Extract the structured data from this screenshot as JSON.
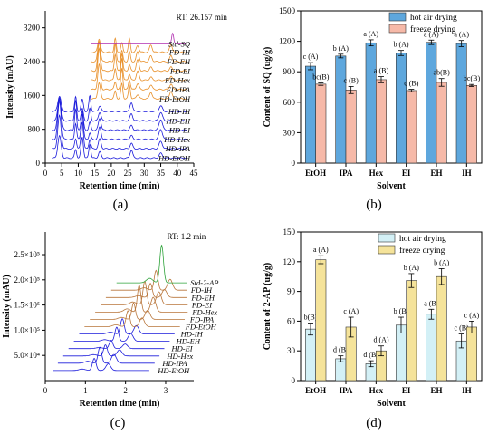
{
  "figure": {
    "subfigure_labels": [
      "(a)",
      "(b)",
      "(c)",
      "(d)"
    ]
  },
  "chart_data": [
    {
      "panel": "(a)",
      "type": "line",
      "xlabel": "Retention time (min)",
      "ylabel": "Intensity (mAU)",
      "xlim": [
        0,
        45
      ],
      "ylim": [
        0,
        3600
      ],
      "xticks": [
        "0",
        "5",
        "10",
        "15",
        "20",
        "25",
        "30",
        "35",
        "40",
        "45"
      ],
      "yticks": [
        "0",
        "800",
        "1600",
        "2400",
        "3200"
      ],
      "annotation": "RT: 26.157 min",
      "annotation_x": 26.157,
      "series": [
        {
          "name": "HD-EtOH",
          "color": "#1a1adb"
        },
        {
          "name": "HD-IPA",
          "color": "#1a1adb"
        },
        {
          "name": "HD-Hex",
          "color": "#1a1adb"
        },
        {
          "name": "HD-EI",
          "color": "#1a1adb"
        },
        {
          "name": "HD-EH",
          "color": "#1a1adb"
        },
        {
          "name": "HD-IH",
          "color": "#1a1adb"
        },
        {
          "name": "FD-EtOH",
          "color": "#e8902a"
        },
        {
          "name": "FD-IPA",
          "color": "#e8902a"
        },
        {
          "name": "FD-Hex",
          "color": "#e8902a"
        },
        {
          "name": "FD-EI",
          "color": "#e8902a"
        },
        {
          "name": "FD-EH",
          "color": "#e8902a"
        },
        {
          "name": "FD-IH",
          "color": "#e8902a"
        },
        {
          "name": "Std-SQ",
          "color": "#b02fb0"
        }
      ]
    },
    {
      "panel": "(b)",
      "type": "bar",
      "xlabel": "Solvent",
      "ylabel": "Content of SQ (ug/g)",
      "ylim": [
        0,
        1500
      ],
      "yticks": [
        "0",
        "300",
        "600",
        "900",
        "1200",
        "1500"
      ],
      "categories": [
        "EtOH",
        "IPA",
        "Hex",
        "EI",
        "EH",
        "IH"
      ],
      "legend_position": "top-right",
      "series": [
        {
          "name": "hot air drying",
          "color": "#5ea7dd",
          "values": [
            955,
            1055,
            1185,
            1085,
            1190,
            1178
          ],
          "errors": [
            35,
            18,
            30,
            25,
            22,
            30
          ],
          "letters": [
            "c (A)",
            "b (A)",
            "a (A)",
            "b (A)",
            "a (A)",
            "a (A)"
          ]
        },
        {
          "name": "freeze drying",
          "color": "#f6b9a8",
          "values": [
            778,
            720,
            822,
            715,
            795,
            765
          ],
          "errors": [
            12,
            35,
            30,
            12,
            38,
            10
          ],
          "letters": [
            "bc(B)",
            "c (B)",
            "a (B)",
            "c (B)",
            "ab(B)",
            "bc(B)"
          ]
        }
      ]
    },
    {
      "panel": "(c)",
      "type": "line",
      "xlabel": "Retention time (min)",
      "ylabel": "Intensity (mAU)",
      "xlim": [
        0,
        3.7
      ],
      "xticks": [
        "0",
        "1",
        "2",
        "3"
      ],
      "yticks": [
        "5.0×10⁴",
        "1.0×10⁵",
        "1.5×10⁵",
        "2.0×10⁵",
        "2.5×10⁵"
      ],
      "annotation": "RT: 1.2 min",
      "series": [
        {
          "name": "HD-EtOH",
          "color": "#1a1adb"
        },
        {
          "name": "HD-IPA",
          "color": "#1a1adb"
        },
        {
          "name": "HD-Hex",
          "color": "#1a1adb"
        },
        {
          "name": "HD-EI",
          "color": "#1a1adb"
        },
        {
          "name": "HD-EH",
          "color": "#1a1adb"
        },
        {
          "name": "HD-IH",
          "color": "#1a1adb"
        },
        {
          "name": "FD-EtOH",
          "color": "#b8753a"
        },
        {
          "name": "FD-IPA",
          "color": "#b8753a"
        },
        {
          "name": "FD-Hex",
          "color": "#b8753a"
        },
        {
          "name": "FD-EI",
          "color": "#b8753a"
        },
        {
          "name": "FD-EH",
          "color": "#b8753a"
        },
        {
          "name": "FD-IH",
          "color": "#b8753a"
        },
        {
          "name": "Std-2-AP",
          "color": "#2ea33a"
        }
      ]
    },
    {
      "panel": "(d)",
      "type": "bar",
      "xlabel": "Solvent",
      "ylabel": "Content of 2-AP (ug/g)",
      "ylim": [
        0,
        150
      ],
      "yticks": [
        "0",
        "30",
        "60",
        "90",
        "120",
        "150"
      ],
      "categories": [
        "EtOH",
        "IPA",
        "Hex",
        "EI",
        "EH",
        "IH"
      ],
      "legend_position": "top-right",
      "series": [
        {
          "name": "hot air drying",
          "color": "#d3f0f6",
          "values": [
            52,
            22,
            17,
            56,
            67,
            40
          ],
          "errors": [
            6,
            3,
            3,
            8,
            5,
            7
          ],
          "letters": [
            "b(B)",
            "d (B)",
            "d (B)",
            "b (B)",
            "a (B)",
            "c (B)"
          ]
        },
        {
          "name": "freeze drying",
          "color": "#f5e39a",
          "values": [
            122,
            54,
            30,
            101,
            105,
            54
          ],
          "errors": [
            4,
            10,
            5,
            7,
            8,
            6
          ],
          "letters": [
            "a (A)",
            "c (A)",
            "d (A)",
            "b (A)",
            "b (A)",
            "c (A)"
          ]
        }
      ]
    }
  ]
}
